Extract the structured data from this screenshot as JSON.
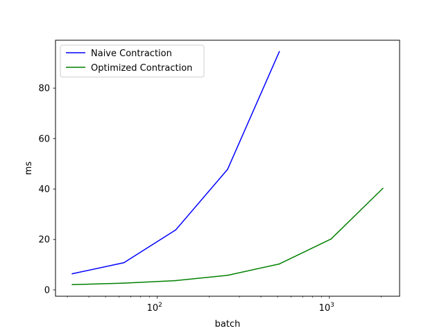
{
  "chart_data": {
    "type": "line",
    "xlabel": "batch",
    "ylabel": "ms",
    "x_scale": "log",
    "xlim": [
      25.6,
      2560
    ],
    "ylim": [
      -2.5,
      99
    ],
    "x_major_ticks": [
      {
        "value": 100,
        "base": "10",
        "exp": "2"
      },
      {
        "value": 1000,
        "base": "10",
        "exp": "3"
      }
    ],
    "y_ticks": [
      0,
      20,
      40,
      60,
      80
    ],
    "grid": false,
    "legend_position": "upper-left",
    "series": [
      {
        "name": "Naive Contraction",
        "color": "#0000ff",
        "x": [
          32,
          64,
          128,
          256,
          512
        ],
        "y": [
          6.4,
          10.8,
          23.8,
          47.8,
          94.5
        ]
      },
      {
        "name": "Optimized Contraction",
        "color": "#008000",
        "x": [
          32,
          64,
          128,
          256,
          512,
          1024,
          2048
        ],
        "y": [
          2.1,
          2.7,
          3.7,
          5.8,
          10.3,
          20.2,
          40.3
        ]
      }
    ]
  }
}
